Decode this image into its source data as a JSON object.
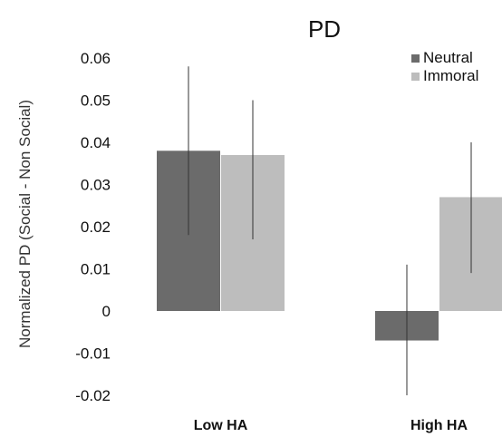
{
  "chart_data": {
    "type": "bar",
    "title": "PD",
    "xlabel": "",
    "ylabel": "Normalized PD (Social - Non Social)",
    "categories": [
      "Low HA",
      "High HA"
    ],
    "series": [
      {
        "name": "Neutral",
        "values": [
          0.038,
          -0.007
        ],
        "error_low": [
          0.018,
          -0.02
        ],
        "error_high": [
          0.058,
          0.011
        ]
      },
      {
        "name": "Immoral",
        "values": [
          0.037,
          0.027
        ],
        "error_low": [
          0.017,
          0.009
        ],
        "error_high": [
          0.05,
          0.04
        ]
      }
    ],
    "ylim": [
      -0.02,
      0.06
    ],
    "yticks": [
      -0.02,
      -0.01,
      0,
      0.01,
      0.02,
      0.03,
      0.04,
      0.05,
      0.06
    ],
    "ytick_labels": [
      "-0.02",
      "-0.01",
      "0",
      "0.01",
      "0.02",
      "0.03",
      "0.04",
      "0.05",
      "0.06"
    ],
    "legend_position": "top-right",
    "grid": false,
    "colors": {
      "Neutral": "#6b6b6b",
      "Immoral": "#bdbdbd",
      "error_bar": "#333333"
    }
  }
}
